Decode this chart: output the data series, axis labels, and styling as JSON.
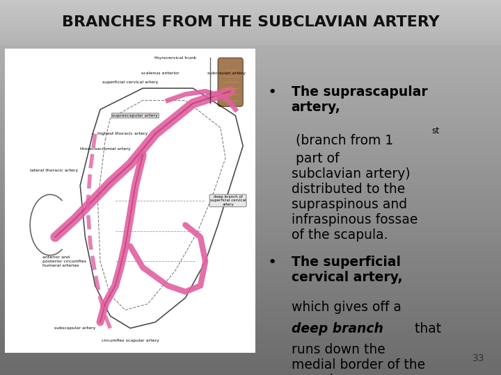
{
  "title": "BRANCHES FROM THE SUBCLAVIAN ARTERY",
  "title_fontsize": 16,
  "title_color": "#111111",
  "bullet1_bold": "The suprascapular\nartery,",
  "bullet1_pre_super": " (branch from 1",
  "bullet1_super": "st",
  "bullet1_rest": " part of\nsubclavian artery)\ndistributed to the\nsupraspinous and\ninfraspinous fossae\nof the scapula.",
  "bullet2_bold": "The superficial\ncervical artery,",
  "bullet2_normal1": "which gives off a",
  "bullet2_bolditalic": "deep branch",
  "bullet2_end": " that\nruns down the\nmedial border of the\nscapula.",
  "page_number": "33",
  "text_color": "#111111",
  "text_fontsize": 13.5,
  "artery_color": "#e060a0",
  "artery_outline": "#c03070",
  "muscle_color": "#8B5A2B",
  "muscle_stripe": "#c8864e",
  "label_fontsize": 4.5
}
